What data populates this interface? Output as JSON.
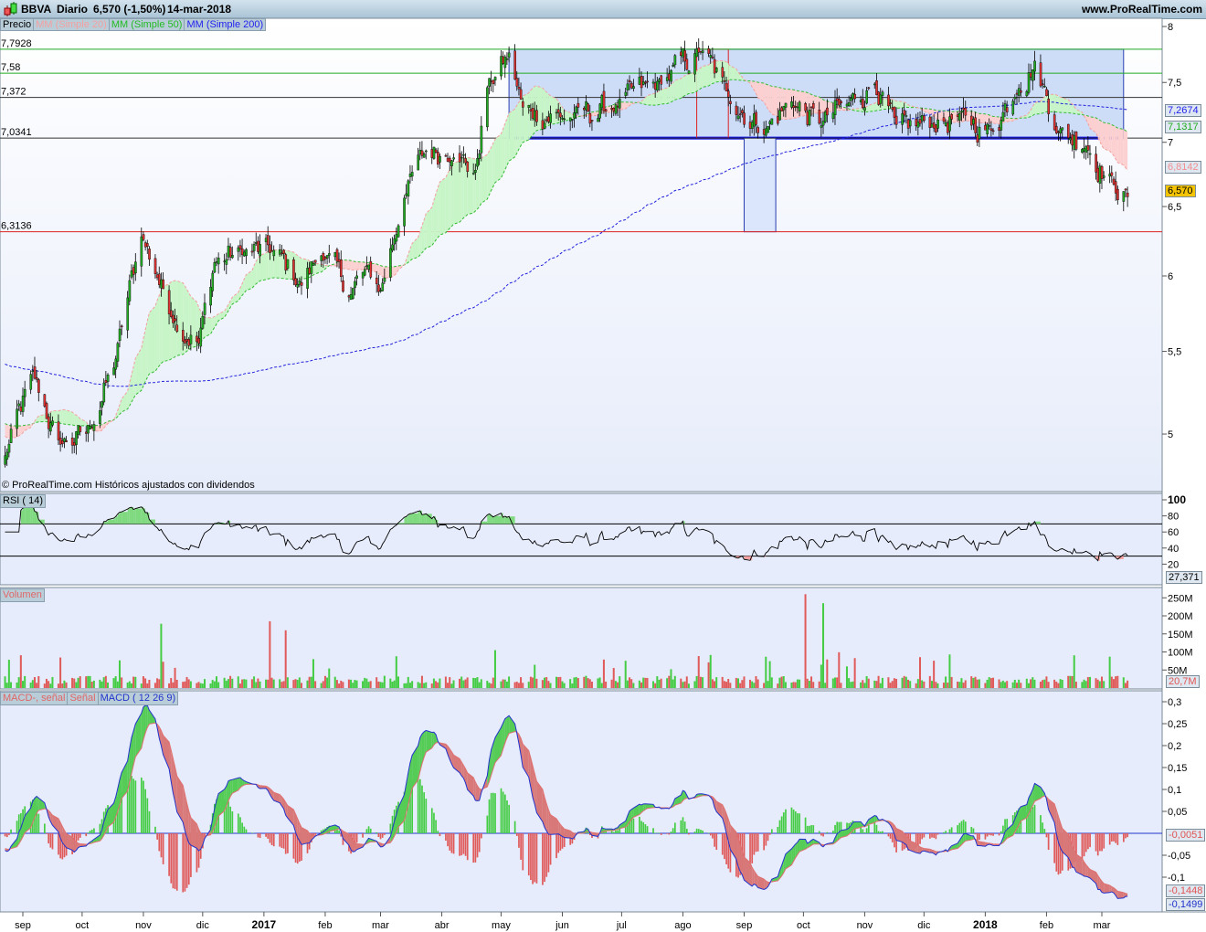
{
  "header": {
    "symbol": "BBVA",
    "period": "Diario",
    "quote": "6,570 (-1,50%)",
    "date": "14-mar-2018",
    "site": "www.ProRealTime.com"
  },
  "legend": [
    "Precio",
    "MM (Simple 20)",
    "MM (Simple 50)",
    "MM (Simple 200)"
  ],
  "footer_note": "© ProRealTime.com  Históricos ajustados con dividendos",
  "panels": {
    "rsi_label": "RSI ( 14)",
    "volume_label": "Volumen",
    "macd_labels": [
      "MACD-, señal",
      "Señal",
      "MACD ( 12 26 9)"
    ]
  },
  "colors": {
    "up": "#22aa22",
    "down": "#dd3333",
    "ma20": "#f4a0a0",
    "ma50": "#33bb33",
    "ma200": "#2222dd",
    "macd": "#2233cc",
    "signal": "#e07070",
    "zone_fill": "#cdddf8"
  },
  "chart_data": {
    "type": "candlestick",
    "y_scale": "log",
    "ylim": [
      4.75,
      8
    ],
    "y_ticks": [
      "8",
      "7,5",
      "7",
      "6,5",
      "6",
      "5,5",
      "5"
    ],
    "y_tick_values": [
      8,
      7.5,
      7,
      6.5,
      6,
      5.5,
      5
    ],
    "x_ticks": [
      {
        "label": "sep",
        "date": "2016-09-01"
      },
      {
        "label": "oct",
        "date": "2016-10-01"
      },
      {
        "label": "nov",
        "date": "2016-11-01"
      },
      {
        "label": "dic",
        "date": "2016-12-01"
      },
      {
        "label": "2017",
        "date": "2017-01-01",
        "bold": true
      },
      {
        "label": "feb",
        "date": "2017-02-01"
      },
      {
        "label": "mar",
        "date": "2017-03-01"
      },
      {
        "label": "abr",
        "date": "2017-04-01"
      },
      {
        "label": "may",
        "date": "2017-05-01"
      },
      {
        "label": "jun",
        "date": "2017-06-01"
      },
      {
        "label": "jul",
        "date": "2017-07-01"
      },
      {
        "label": "ago",
        "date": "2017-08-01"
      },
      {
        "label": "sep",
        "date": "2017-09-01"
      },
      {
        "label": "oct",
        "date": "2017-10-01"
      },
      {
        "label": "nov",
        "date": "2017-11-01"
      },
      {
        "label": "dic",
        "date": "2017-12-01"
      },
      {
        "label": "2018",
        "date": "2018-01-01",
        "bold": true
      },
      {
        "label": "feb",
        "date": "2018-02-01"
      },
      {
        "label": "mar",
        "date": "2018-03-01"
      }
    ],
    "close_keypoints": [
      [
        "2016-08-23",
        4.87
      ],
      [
        "2016-09-06",
        5.35
      ],
      [
        "2016-09-19",
        4.94
      ],
      [
        "2016-10-03",
        5.0
      ],
      [
        "2016-10-17",
        5.4
      ],
      [
        "2016-10-31",
        6.3
      ],
      [
        "2016-11-08",
        6.0
      ],
      [
        "2016-11-15",
        5.75
      ],
      [
        "2016-11-29",
        5.55
      ],
      [
        "2016-12-07",
        6.1
      ],
      [
        "2016-12-20",
        6.17
      ],
      [
        "2017-01-06",
        6.17
      ],
      [
        "2017-01-20",
        5.94
      ],
      [
        "2017-01-30",
        6.17
      ],
      [
        "2017-02-13",
        5.88
      ],
      [
        "2017-02-22",
        6.04
      ],
      [
        "2017-03-01",
        5.9
      ],
      [
        "2017-03-13",
        6.6
      ],
      [
        "2017-03-24",
        6.93
      ],
      [
        "2017-04-07",
        6.93
      ],
      [
        "2017-04-18",
        6.76
      ],
      [
        "2017-04-24",
        7.46
      ],
      [
        "2017-05-05",
        7.74
      ],
      [
        "2017-05-12",
        7.27
      ],
      [
        "2017-06-05",
        7.2
      ],
      [
        "2017-06-28",
        7.3
      ],
      [
        "2017-07-21",
        7.5
      ],
      [
        "2017-08-10",
        7.78
      ],
      [
        "2017-08-23",
        7.42
      ],
      [
        "2017-09-11",
        7.1
      ],
      [
        "2017-09-25",
        7.34
      ],
      [
        "2017-10-09",
        7.15
      ],
      [
        "2017-10-23",
        7.3
      ],
      [
        "2017-11-06",
        7.5
      ],
      [
        "2017-11-17",
        7.1
      ],
      [
        "2017-12-05",
        7.15
      ],
      [
        "2017-12-19",
        7.2
      ],
      [
        "2018-01-04",
        7.1
      ],
      [
        "2018-01-18",
        7.5
      ],
      [
        "2018-01-26",
        7.67
      ],
      [
        "2018-02-07",
        7.1
      ],
      [
        "2018-02-21",
        6.99
      ],
      [
        "2018-03-07",
        6.67
      ],
      [
        "2018-03-14",
        6.57
      ]
    ],
    "levels": [
      {
        "value": 7.7928,
        "label": "7,7928",
        "color": "#22aa22"
      },
      {
        "value": 7.58,
        "label": "7,58",
        "color": "#22aa22"
      },
      {
        "value": 7.372,
        "label": "7,372",
        "color": "#333333"
      },
      {
        "value": 7.0341,
        "label": "7,0341",
        "color": "#333333"
      },
      {
        "value": 6.3136,
        "label": "6,3136",
        "color": "#dd2222"
      }
    ],
    "zones": [
      {
        "from": "2017-05-05",
        "to": "2018-03-12",
        "top": 7.7928,
        "bottom": 7.0341,
        "fill": "#cdddf8",
        "stroke": "#2a3fb0",
        "bottom_line": "#0000ee"
      },
      {
        "from": "2017-08-08",
        "to": "2017-08-24",
        "top": 7.7928,
        "bottom": 7.0341,
        "fill": "none",
        "stroke": "#dd2222"
      },
      {
        "from": "2017-09-01",
        "to": "2017-09-17",
        "top": 7.0341,
        "bottom": 6.3136,
        "fill": "#dbe5fb",
        "stroke": "#2a3fb0"
      }
    ],
    "last_values": {
      "ma200": "7,2674",
      "ma50": "7,1317",
      "ma20": "6,8142",
      "close": "6,570",
      "rsi": "27,371",
      "volume": "20,7M",
      "macd_hist": "-0,0051",
      "signal": "-0,1448",
      "macd": "-0,1499"
    },
    "rsi": {
      "period": 14,
      "ylim": [
        0,
        100
      ],
      "levels": [
        70,
        30
      ],
      "ticks": [
        "100",
        "80",
        "60",
        "40",
        "20"
      ],
      "tick_values": [
        100,
        80,
        60,
        40,
        20
      ]
    },
    "volume": {
      "ticks": [
        "250M",
        "200M",
        "150M",
        "100M",
        "50M"
      ],
      "tick_values": [
        250,
        200,
        150,
        100,
        50
      ],
      "unit": "M",
      "spikes": [
        [
          "2016-11-10",
          178
        ],
        [
          "2017-01-04",
          185
        ],
        [
          "2017-01-12",
          160
        ],
        [
          "2017-10-02",
          260
        ],
        [
          "2017-10-11",
          235
        ],
        [
          "2017-04-28",
          105
        ]
      ]
    },
    "macd": {
      "params": [
        12,
        26,
        9
      ],
      "ylim": [
        -0.18,
        0.32
      ],
      "ticks": [
        "0,3",
        "0,25",
        "0,2",
        "0,15",
        "0,1",
        "0,05",
        "-0,05",
        "-0,1"
      ],
      "tick_values": [
        0.3,
        0.25,
        0.2,
        0.15,
        0.1,
        0.05,
        -0.05,
        -0.1
      ]
    }
  }
}
